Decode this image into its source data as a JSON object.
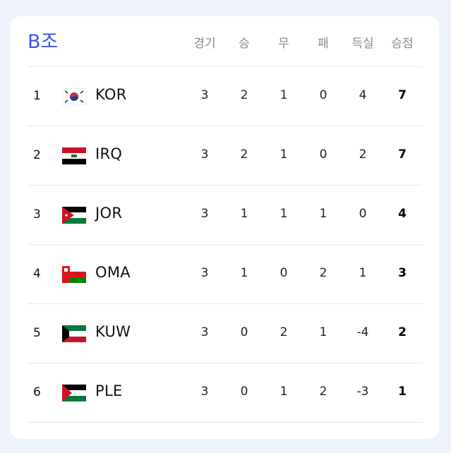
{
  "group_title": "B조",
  "headers": [
    "경기",
    "승",
    "무",
    "패",
    "득실",
    "승점"
  ],
  "rows": [
    {
      "rank": "1",
      "team": "KOR",
      "flag": "flag-korea-icon",
      "played": "3",
      "win": "2",
      "draw": "1",
      "loss": "0",
      "gd": "4",
      "pts": "7"
    },
    {
      "rank": "2",
      "team": "IRQ",
      "flag": "flag-iraq-icon",
      "played": "3",
      "win": "2",
      "draw": "1",
      "loss": "0",
      "gd": "2",
      "pts": "7"
    },
    {
      "rank": "3",
      "team": "JOR",
      "flag": "flag-jordan-icon",
      "played": "3",
      "win": "1",
      "draw": "1",
      "loss": "1",
      "gd": "0",
      "pts": "4"
    },
    {
      "rank": "4",
      "team": "OMA",
      "flag": "flag-oman-icon",
      "played": "3",
      "win": "1",
      "draw": "0",
      "loss": "2",
      "gd": "1",
      "pts": "3"
    },
    {
      "rank": "5",
      "team": "KUW",
      "flag": "flag-kuwait-icon",
      "played": "3",
      "win": "0",
      "draw": "2",
      "loss": "1",
      "gd": "-4",
      "pts": "2"
    },
    {
      "rank": "6",
      "team": "PLE",
      "flag": "flag-palestine-icon",
      "played": "3",
      "win": "0",
      "draw": "1",
      "loss": "2",
      "gd": "-3",
      "pts": "1"
    }
  ],
  "colors": {
    "accent": "#3b57e6",
    "header_text": "#8a8a8a",
    "background": "#eef2fa"
  }
}
